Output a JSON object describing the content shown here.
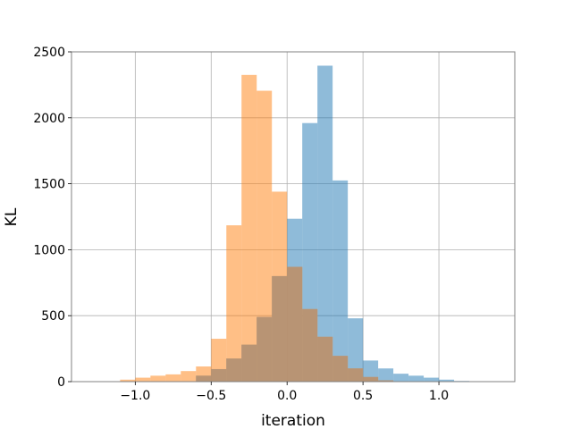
{
  "chart_data": {
    "type": "histogram",
    "title": "",
    "xlabel": "iteration",
    "ylabel": "KL",
    "xlim": [
      -1.42,
      1.5
    ],
    "ylim": [
      0,
      2500
    ],
    "xticks": [
      -1.0,
      -0.5,
      0.0,
      0.5,
      1.0
    ],
    "xtick_labels": [
      "−1.0",
      "−0.5",
      "0.0",
      "0.5",
      "1.0"
    ],
    "yticks": [
      0,
      500,
      1000,
      1500,
      2000,
      2500
    ],
    "ytick_labels": [
      "0",
      "500",
      "1000",
      "1500",
      "2000",
      "2500"
    ],
    "grid": true,
    "legend": false,
    "overlap_color": "#b89474",
    "series": [
      {
        "color": "#1f77b4",
        "alpha": 0.5,
        "bin_edges": [
          -0.6,
          -0.5,
          -0.4,
          -0.3,
          -0.2,
          -0.1,
          0.0,
          0.1,
          0.2,
          0.3,
          0.4,
          0.5,
          0.6,
          0.7,
          0.8,
          0.9,
          1.0,
          1.1,
          1.2
        ],
        "counts": [
          45,
          95,
          175,
          280,
          490,
          800,
          1235,
          1960,
          2395,
          1525,
          480,
          160,
          100,
          60,
          45,
          30,
          15,
          5
        ]
      },
      {
        "color": "#ff7f0e",
        "alpha": 0.5,
        "bin_edges": [
          -1.1,
          -1.0,
          -0.9,
          -0.8,
          -0.7,
          -0.6,
          -0.5,
          -0.4,
          -0.3,
          -0.2,
          -0.1,
          0.0,
          0.1,
          0.2,
          0.3,
          0.4,
          0.5,
          0.6,
          0.7
        ],
        "counts": [
          15,
          30,
          45,
          55,
          80,
          115,
          325,
          1185,
          2325,
          2205,
          1440,
          870,
          550,
          340,
          195,
          100,
          35,
          10
        ]
      }
    ]
  }
}
